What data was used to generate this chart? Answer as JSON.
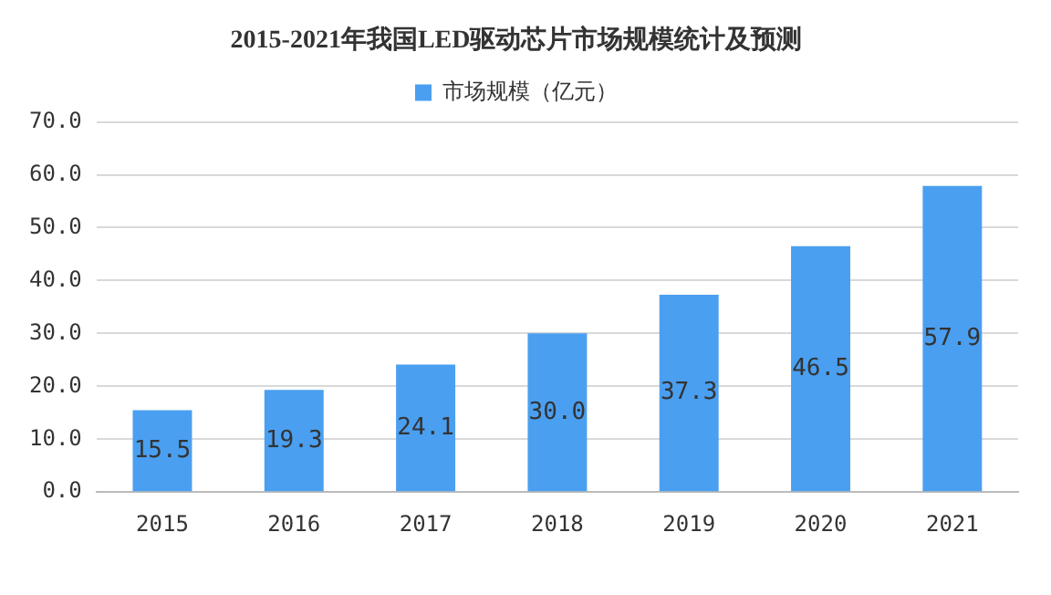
{
  "chart_data": {
    "type": "bar",
    "title": "2015-2021年我国LED驱动芯片市场规模统计及预测",
    "categories": [
      "2015",
      "2016",
      "2017",
      "2018",
      "2019",
      "2020",
      "2021"
    ],
    "series": [
      {
        "name": "市场规模（亿元）",
        "color": "#4a9ff0",
        "values": [
          15.5,
          19.3,
          24.1,
          30.0,
          37.3,
          46.5,
          57.9
        ],
        "value_labels": [
          "15.5",
          "19.3",
          "24.1",
          "30.0",
          "37.3",
          "46.5",
          "57.9"
        ]
      }
    ],
    "ylim": [
      0,
      70
    ],
    "yticks": [
      {
        "value": 0,
        "label": "0.0"
      },
      {
        "value": 10,
        "label": "10.0"
      },
      {
        "value": 20,
        "label": "20.0"
      },
      {
        "value": 30,
        "label": "30.0"
      },
      {
        "value": 40,
        "label": "40.0"
      },
      {
        "value": 50,
        "label": "50.0"
      },
      {
        "value": 60,
        "label": "60.0"
      },
      {
        "value": 70,
        "label": "70.0"
      }
    ],
    "grid": "y",
    "legend": "top"
  }
}
